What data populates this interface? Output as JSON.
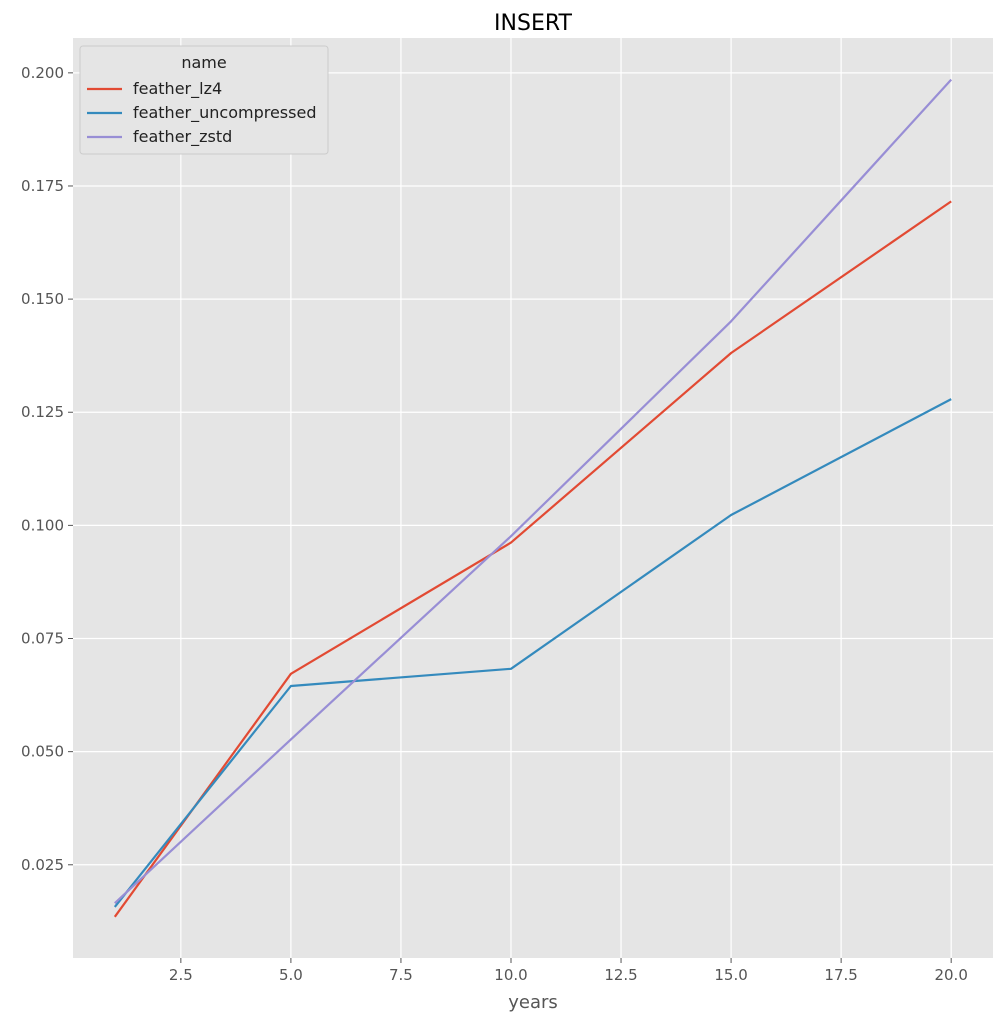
{
  "chart_data": {
    "type": "line",
    "title": "INSERT",
    "xlabel": "years",
    "ylabel": "",
    "xlim": [
      0.05,
      20.95
    ],
    "ylim": [
      0.0044,
      0.2077
    ],
    "xticks": [
      "2.5",
      "5.0",
      "7.5",
      "10.0",
      "12.5",
      "15.0",
      "17.5",
      "20.0"
    ],
    "yticks": [
      "0.025",
      "0.050",
      "0.075",
      "0.100",
      "0.125",
      "0.150",
      "0.175",
      "0.200"
    ],
    "grid": true,
    "legend": {
      "title": "name",
      "placement": "top-left"
    },
    "x": [
      1,
      5,
      10,
      15,
      20
    ],
    "series": [
      {
        "name": "feather_lz4",
        "color": "#E24A33",
        "values": [
          0.0135,
          0.0672,
          0.0962,
          0.1381,
          0.1716
        ]
      },
      {
        "name": "feather_uncompressed",
        "color": "#348ABD",
        "values": [
          0.0157,
          0.0645,
          0.0683,
          0.1023,
          0.1279
        ]
      },
      {
        "name": "feather_zstd",
        "color": "#988ED5",
        "values": [
          0.0165,
          0.0527,
          0.0976,
          0.1451,
          0.1985
        ]
      }
    ]
  }
}
